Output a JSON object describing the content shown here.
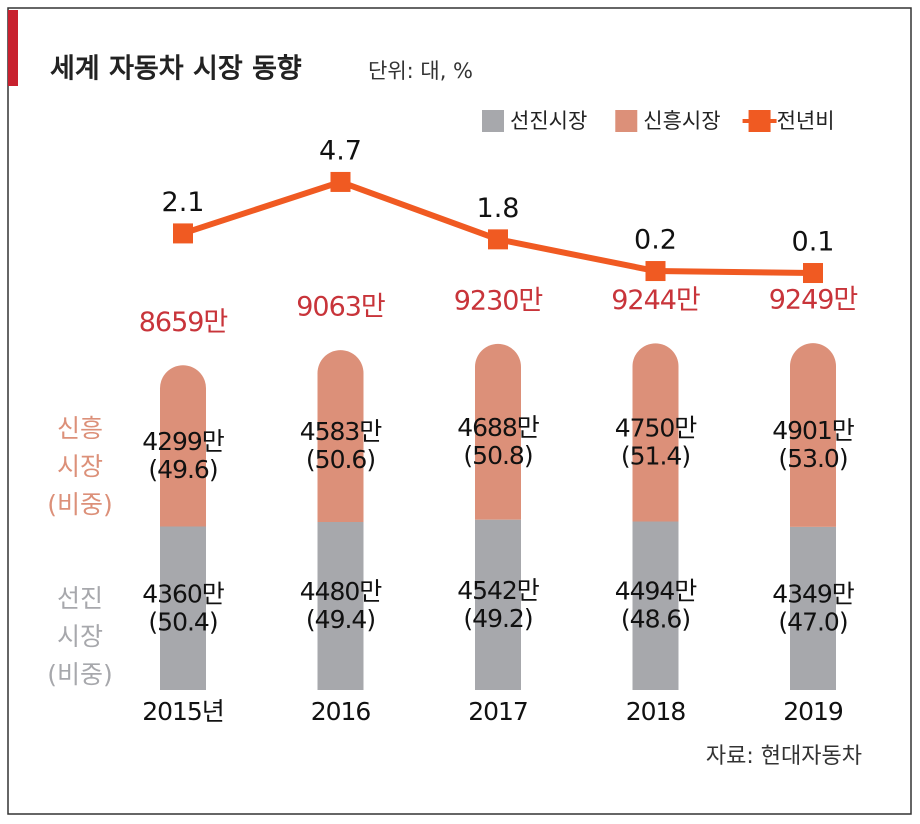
{
  "chart_data": {
    "type": "bar",
    "title": "세계 자동차 시장 동향",
    "subtitle": "단위: 대, %",
    "source": "자료: 현대자동차",
    "categories": [
      "2015년",
      "2016",
      "2017",
      "2018",
      "2019"
    ],
    "ylim": [
      0,
      8800
    ],
    "y2lim": [
      0,
      5
    ],
    "series": [
      {
        "name": "선진시장",
        "color": "#a7a8ac",
        "values": [
          4360,
          4480,
          4542,
          4494,
          4349
        ],
        "value_labels": [
          "4360만",
          "4480만",
          "4542만",
          "4494만",
          "4349만"
        ],
        "shares": [
          50.4,
          49.4,
          49.2,
          48.6,
          47.0
        ],
        "share_labels": [
          "(50.4)",
          "(49.4)",
          "(49.2)",
          "(48.6)",
          "(47.0)"
        ],
        "side_label": [
          "선진",
          "시장",
          "(비중)"
        ]
      },
      {
        "name": "신흥시장",
        "color": "#dc9079",
        "values": [
          4299,
          4583,
          4688,
          4750,
          4901
        ],
        "value_labels": [
          "4299만",
          "4583만",
          "4688만",
          "4750만",
          "4901만"
        ],
        "shares": [
          49.6,
          50.6,
          50.8,
          51.4,
          53.0
        ],
        "share_labels": [
          "(49.6)",
          "(50.6)",
          "(50.8)",
          "(51.4)",
          "(53.0)"
        ],
        "side_label": [
          "신흥",
          "시장",
          "(비중)"
        ]
      },
      {
        "name": "전년비",
        "color": "#f05a22",
        "axis": "y2",
        "type": "line",
        "values": [
          2.1,
          4.7,
          1.8,
          0.2,
          0.1
        ]
      }
    ],
    "totals": [
      8659,
      9063,
      9230,
      9244,
      9249
    ],
    "total_labels": [
      "8659만",
      "9063만",
      "9230만",
      "9244만",
      "9249만"
    ],
    "total_color": "#c8343a"
  }
}
